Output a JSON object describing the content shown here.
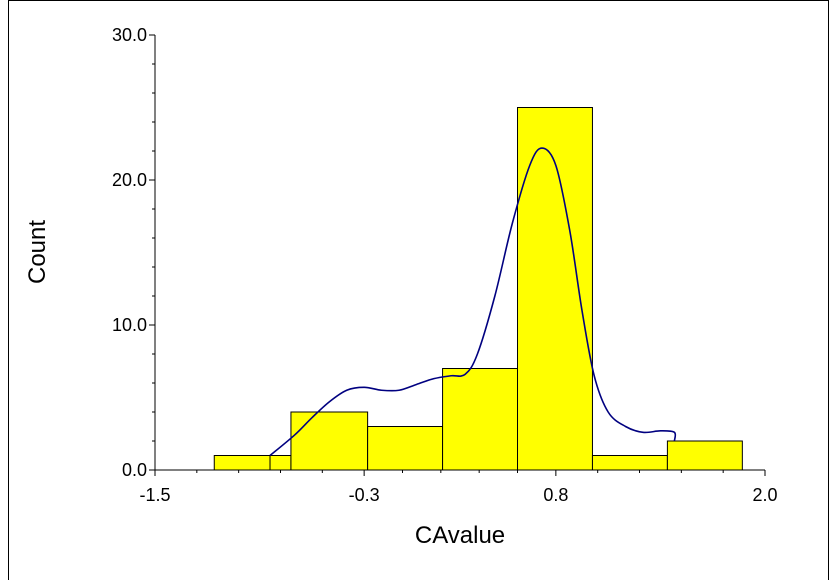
{
  "chart_data": {
    "type": "bar",
    "xlabel": "CAvalue",
    "ylabel": "Count",
    "xlim": [
      -1.5,
      2.0
    ],
    "ylim": [
      0,
      30
    ],
    "x_ticks": [
      -1.5,
      -0.3,
      0.8,
      2.0
    ],
    "x_tick_labels": [
      "-1.5",
      "-0.3",
      "0.8",
      "2.0"
    ],
    "y_ticks": [
      0,
      10,
      20,
      30
    ],
    "y_tick_labels": [
      "0.0",
      "10.0",
      "20.0",
      "30.0"
    ],
    "grid": false,
    "bar_color": "#FFFF00",
    "curve_color": "#000080",
    "bars": [
      {
        "x0": -1.16,
        "x1": -0.84,
        "count": 1
      },
      {
        "x0": -0.84,
        "x1": -0.72,
        "count": 1
      },
      {
        "x0": -0.72,
        "x1": -0.28,
        "count": 4
      },
      {
        "x0": -0.28,
        "x1": 0.15,
        "count": 3
      },
      {
        "x0": 0.15,
        "x1": 0.58,
        "count": 7
      },
      {
        "x0": 0.58,
        "x1": 1.01,
        "count": 25
      },
      {
        "x0": 1.01,
        "x1": 1.44,
        "count": 1
      },
      {
        "x0": 1.44,
        "x1": 1.87,
        "count": 2
      }
    ],
    "density_curve": [
      [
        -0.84,
        1.0
      ],
      [
        -0.7,
        2.4
      ],
      [
        -0.6,
        3.6
      ],
      [
        -0.5,
        4.7
      ],
      [
        -0.4,
        5.5
      ],
      [
        -0.3,
        5.7
      ],
      [
        -0.2,
        5.5
      ],
      [
        -0.1,
        5.5
      ],
      [
        0.0,
        5.9
      ],
      [
        0.1,
        6.3
      ],
      [
        0.2,
        6.5
      ],
      [
        0.28,
        6.6
      ],
      [
        0.35,
        8.0
      ],
      [
        0.45,
        12.0
      ],
      [
        0.55,
        17.0
      ],
      [
        0.65,
        21.0
      ],
      [
        0.72,
        22.2
      ],
      [
        0.8,
        21.0
      ],
      [
        0.88,
        16.5
      ],
      [
        0.95,
        11.0
      ],
      [
        1.02,
        6.5
      ],
      [
        1.1,
        4.0
      ],
      [
        1.2,
        3.0
      ],
      [
        1.3,
        2.6
      ],
      [
        1.4,
        2.7
      ],
      [
        1.48,
        2.6
      ],
      [
        1.48,
        2.0
      ]
    ]
  }
}
